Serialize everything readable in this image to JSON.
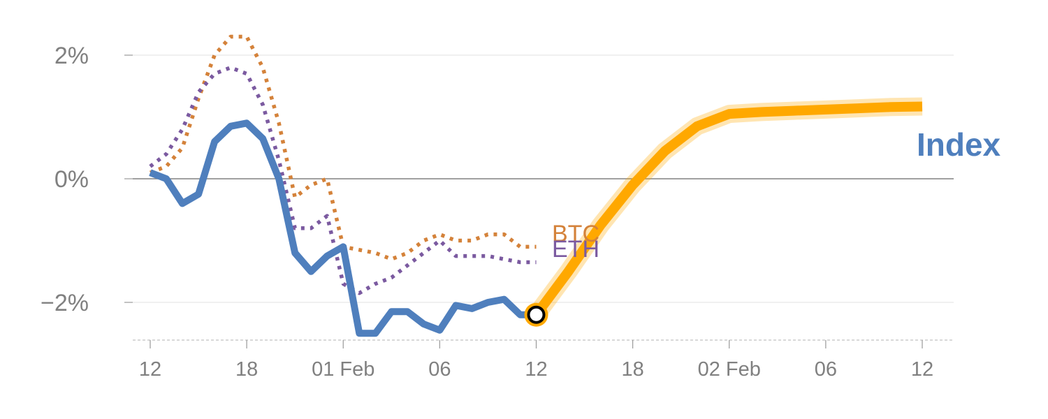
{
  "chart_data": {
    "type": "line",
    "y_unit": "%",
    "ylim": [
      -2.6,
      2.25
    ],
    "y_ticks": [
      {
        "value": 2,
        "label": "2%"
      },
      {
        "value": 0,
        "label": "0%"
      },
      {
        "value": -2,
        "label": "−2%"
      }
    ],
    "x_ticks": [
      {
        "index": 0,
        "label": "12"
      },
      {
        "index": 6,
        "label": "18"
      },
      {
        "index": 12,
        "label": "01 Feb"
      },
      {
        "index": 18,
        "label": "06"
      },
      {
        "index": 24,
        "label": "12"
      },
      {
        "index": 30,
        "label": "18"
      },
      {
        "index": 36,
        "label": "02 Feb"
      },
      {
        "index": 42,
        "label": "06"
      },
      {
        "index": 48,
        "label": "12"
      }
    ],
    "xlim": [
      0,
      48
    ],
    "grid": true,
    "legend": "inline labels at series ends",
    "colors": {
      "btc": "#d4823a",
      "eth": "#7b5aa0",
      "index": "#4f7fbd",
      "projection": "#ffa800",
      "grid": "#e6e6e6",
      "zero_line": "#808080",
      "tick_label": "#808080"
    },
    "series": [
      {
        "name": "BTC",
        "style": "dotted",
        "x": [
          0,
          1,
          2,
          3,
          4,
          5,
          6,
          7,
          8,
          9,
          10,
          11,
          12,
          13,
          14,
          15,
          16,
          17,
          18,
          19,
          20,
          21,
          22,
          23,
          24
        ],
        "values": [
          0.1,
          0.2,
          0.5,
          1.3,
          2.0,
          2.3,
          2.3,
          1.8,
          0.9,
          -0.3,
          -0.1,
          0.0,
          -1.1,
          -1.15,
          -1.2,
          -1.3,
          -1.2,
          -1.0,
          -0.9,
          -1.0,
          -1.0,
          -0.9,
          -0.9,
          -1.1,
          -1.1
        ]
      },
      {
        "name": "ETH",
        "style": "dotted",
        "x": [
          0,
          1,
          2,
          3,
          4,
          5,
          6,
          7,
          8,
          9,
          10,
          11,
          12,
          13,
          14,
          15,
          16,
          17,
          18,
          19,
          20,
          21,
          22,
          23,
          24
        ],
        "values": [
          0.2,
          0.4,
          0.8,
          1.4,
          1.7,
          1.8,
          1.7,
          1.2,
          0.3,
          -0.8,
          -0.8,
          -0.6,
          -1.7,
          -1.85,
          -1.7,
          -1.6,
          -1.4,
          -1.2,
          -1.0,
          -1.25,
          -1.25,
          -1.25,
          -1.3,
          -1.35,
          -1.35
        ]
      },
      {
        "name": "Index",
        "style": "solid",
        "x": [
          0,
          1,
          2,
          3,
          4,
          5,
          6,
          7,
          8,
          9,
          10,
          11,
          12,
          13,
          14,
          15,
          16,
          17,
          18,
          19,
          20,
          21,
          22,
          23,
          24
        ],
        "values": [
          0.1,
          0.0,
          -0.4,
          -0.25,
          0.6,
          0.85,
          0.9,
          0.65,
          0.0,
          -1.2,
          -1.5,
          -1.25,
          -1.1,
          -2.5,
          -2.5,
          -2.15,
          -2.15,
          -2.35,
          -2.45,
          -2.05,
          -2.1,
          -2.0,
          -1.95,
          -2.2,
          -2.2
        ]
      },
      {
        "name": "",
        "style": "projection",
        "x": [
          24,
          26,
          28,
          30,
          32,
          34,
          36,
          38,
          40,
          42,
          44,
          46,
          48
        ],
        "values": [
          -2.2,
          -1.5,
          -0.75,
          -0.1,
          0.45,
          0.85,
          1.05,
          1.08,
          1.1,
          1.12,
          1.14,
          1.16,
          1.17
        ]
      }
    ],
    "end_labels": [
      {
        "text": "BTC"
      },
      {
        "text": "ETH"
      },
      {
        "text": "Index"
      }
    ]
  }
}
